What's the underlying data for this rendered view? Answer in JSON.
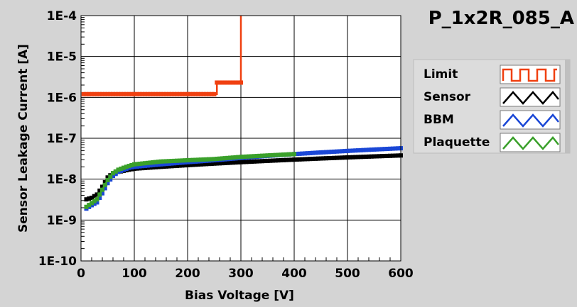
{
  "chart_data": {
    "type": "line",
    "title": "P_1x2R_085_A",
    "xlabel": "Bias Voltage [V]",
    "ylabel": "Sensor Leakage Current [A]",
    "xlim": [
      0,
      600
    ],
    "ylim": [
      1e-10,
      0.0001
    ],
    "yscale": "log",
    "grid": true,
    "legend_position": "right",
    "x_ticks": [
      0,
      100,
      200,
      300,
      400,
      500,
      600
    ],
    "x_tick_labels": [
      "0",
      "100",
      "200",
      "300",
      "400",
      "500",
      "600"
    ],
    "y_ticks": [
      1e-10,
      1e-09,
      1e-08,
      1e-07,
      1e-06,
      1e-05,
      0.0001
    ],
    "y_tick_labels": [
      "1E-10",
      "1E-9",
      "1E-8",
      "1E-7",
      "1E-6",
      "1E-5",
      "1E-4"
    ],
    "series": [
      {
        "name": "Limit",
        "color": "#f04010",
        "style": "step",
        "x": [
          5,
          10,
          20,
          30,
          40,
          50,
          60,
          70,
          80,
          90,
          100,
          110,
          120,
          130,
          140,
          150,
          160,
          170,
          180,
          190,
          200,
          210,
          220,
          230,
          240,
          250,
          255,
          265,
          275,
          285,
          295,
          300,
          300
        ],
        "y": [
          1.2e-06,
          1.2e-06,
          1.2e-06,
          1.2e-06,
          1.2e-06,
          1.2e-06,
          1.2e-06,
          1.2e-06,
          1.2e-06,
          1.2e-06,
          1.2e-06,
          1.2e-06,
          1.2e-06,
          1.2e-06,
          1.2e-06,
          1.2e-06,
          1.2e-06,
          1.2e-06,
          1.2e-06,
          1.2e-06,
          1.2e-06,
          1.2e-06,
          1.2e-06,
          1.2e-06,
          1.2e-06,
          1.2e-06,
          2.3e-06,
          2.3e-06,
          2.3e-06,
          2.3e-06,
          2.3e-06,
          2.3e-06,
          0.0001
        ]
      },
      {
        "name": "Sensor",
        "color": "#000000",
        "x": [
          10,
          20,
          30,
          40,
          50,
          60,
          70,
          80,
          90,
          100,
          150,
          200,
          250,
          300,
          350,
          400,
          450,
          500,
          550,
          600
        ],
        "y": [
          3.2e-09,
          3.5e-09,
          4.2e-09,
          6.5e-09,
          1.1e-08,
          1.4e-08,
          1.5e-08,
          1.6e-08,
          1.7e-08,
          1.8e-08,
          2e-08,
          2.2e-08,
          2.4e-08,
          2.6e-08,
          2.8e-08,
          3e-08,
          3.2e-08,
          3.4e-08,
          3.6e-08,
          3.8e-08
        ]
      },
      {
        "name": "BBM",
        "color": "#1a47d6",
        "x": [
          10,
          20,
          30,
          40,
          50,
          60,
          70,
          80,
          90,
          100,
          150,
          200,
          250,
          300,
          350,
          400,
          450,
          500,
          550,
          600
        ],
        "y": [
          1.9e-09,
          2.3e-09,
          2.7e-09,
          4.5e-09,
          8e-09,
          1.2e-08,
          1.5e-08,
          1.7e-08,
          1.9e-08,
          2e-08,
          2.3e-08,
          2.6e-08,
          2.9e-08,
          3.3e-08,
          3.7e-08,
          4.1e-08,
          4.5e-08,
          4.9e-08,
          5.3e-08,
          5.7e-08
        ]
      },
      {
        "name": "Plaquette",
        "color": "#3aa02a",
        "x": [
          10,
          20,
          30,
          40,
          50,
          60,
          70,
          80,
          90,
          100,
          150,
          200,
          250,
          300,
          350,
          400
        ],
        "y": [
          2.1e-09,
          2.6e-09,
          3.2e-09,
          5.5e-09,
          9.5e-09,
          1.4e-08,
          1.7e-08,
          1.9e-08,
          2.1e-08,
          2.3e-08,
          2.7e-08,
          2.9e-08,
          3.1e-08,
          3.5e-08,
          3.8e-08,
          4.1e-08
        ]
      }
    ]
  }
}
